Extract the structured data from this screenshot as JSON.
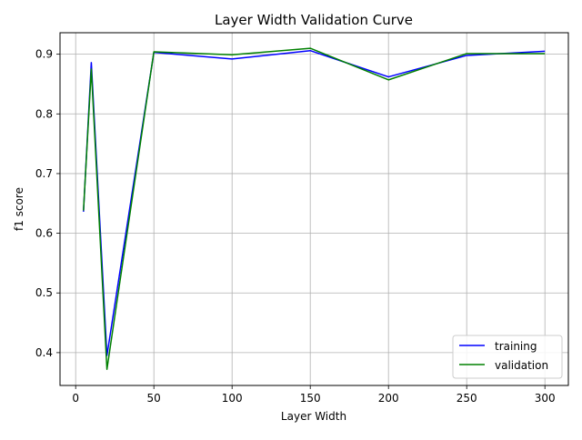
{
  "chart_data": {
    "type": "line",
    "title": "Layer Width Validation Curve",
    "xlabel": "Layer Width",
    "ylabel": "f1 score",
    "xlim": [
      -10,
      315
    ],
    "ylim": [
      0.345,
      0.936
    ],
    "xticks": [
      0,
      50,
      100,
      150,
      200,
      250,
      300
    ],
    "xtick_labels": [
      "0",
      "50",
      "100",
      "150",
      "200",
      "250",
      "300"
    ],
    "yticks": [
      0.4,
      0.5,
      0.6,
      0.7,
      0.8,
      0.9
    ],
    "ytick_labels": [
      "0.4",
      "0.5",
      "0.6",
      "0.7",
      "0.8",
      "0.9"
    ],
    "grid": true,
    "legend_position": "lower-right",
    "x": [
      5,
      10,
      20,
      50,
      100,
      150,
      200,
      250,
      300
    ],
    "series": [
      {
        "name": "training",
        "color": "#0000ff",
        "values": [
          0.636,
          0.886,
          0.395,
          0.903,
          0.892,
          0.906,
          0.862,
          0.898,
          0.905
        ]
      },
      {
        "name": "validation",
        "color": "#008000",
        "values": [
          0.638,
          0.875,
          0.372,
          0.904,
          0.899,
          0.91,
          0.857,
          0.901,
          0.901
        ]
      }
    ]
  }
}
